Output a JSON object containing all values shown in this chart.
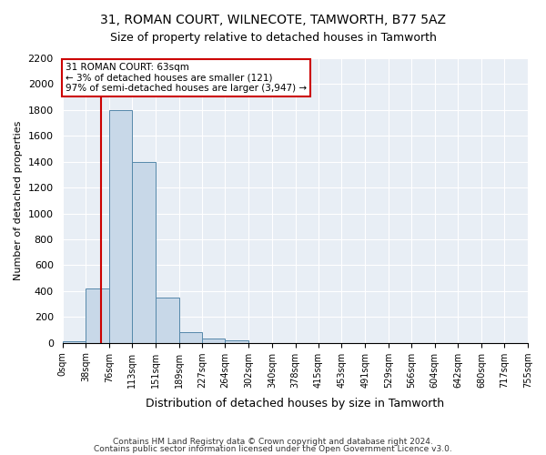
{
  "title1": "31, ROMAN COURT, WILNECOTE, TAMWORTH, B77 5AZ",
  "title2": "Size of property relative to detached houses in Tamworth",
  "xlabel": "Distribution of detached houses by size in Tamworth",
  "ylabel": "Number of detached properties",
  "annotation_title": "31 ROMAN COURT: 63sqm",
  "annotation_line1": "← 3% of detached houses are smaller (121)",
  "annotation_line2": "97% of semi-detached houses are larger (3,947) →",
  "footer1": "Contains HM Land Registry data © Crown copyright and database right 2024.",
  "footer2": "Contains public sector information licensed under the Open Government Licence v3.0.",
  "bin_edges": [
    0,
    38,
    76,
    113,
    151,
    189,
    227,
    264,
    302,
    340,
    378,
    415,
    453,
    491,
    529,
    566,
    604,
    642,
    680,
    717,
    755
  ],
  "bar_values": [
    15,
    420,
    1800,
    1400,
    350,
    80,
    35,
    18,
    0,
    0,
    0,
    0,
    0,
    0,
    0,
    0,
    0,
    0,
    0,
    0
  ],
  "property_size": 63,
  "bar_color": "#c8d8e8",
  "bar_edge_color": "#5588aa",
  "vline_color": "#cc0000",
  "annotation_box_color": "#cc0000",
  "bg_color": "#e8eef5",
  "ylim": [
    0,
    2200
  ],
  "yticks": [
    0,
    200,
    400,
    600,
    800,
    1000,
    1200,
    1400,
    1600,
    1800,
    2000,
    2200
  ]
}
